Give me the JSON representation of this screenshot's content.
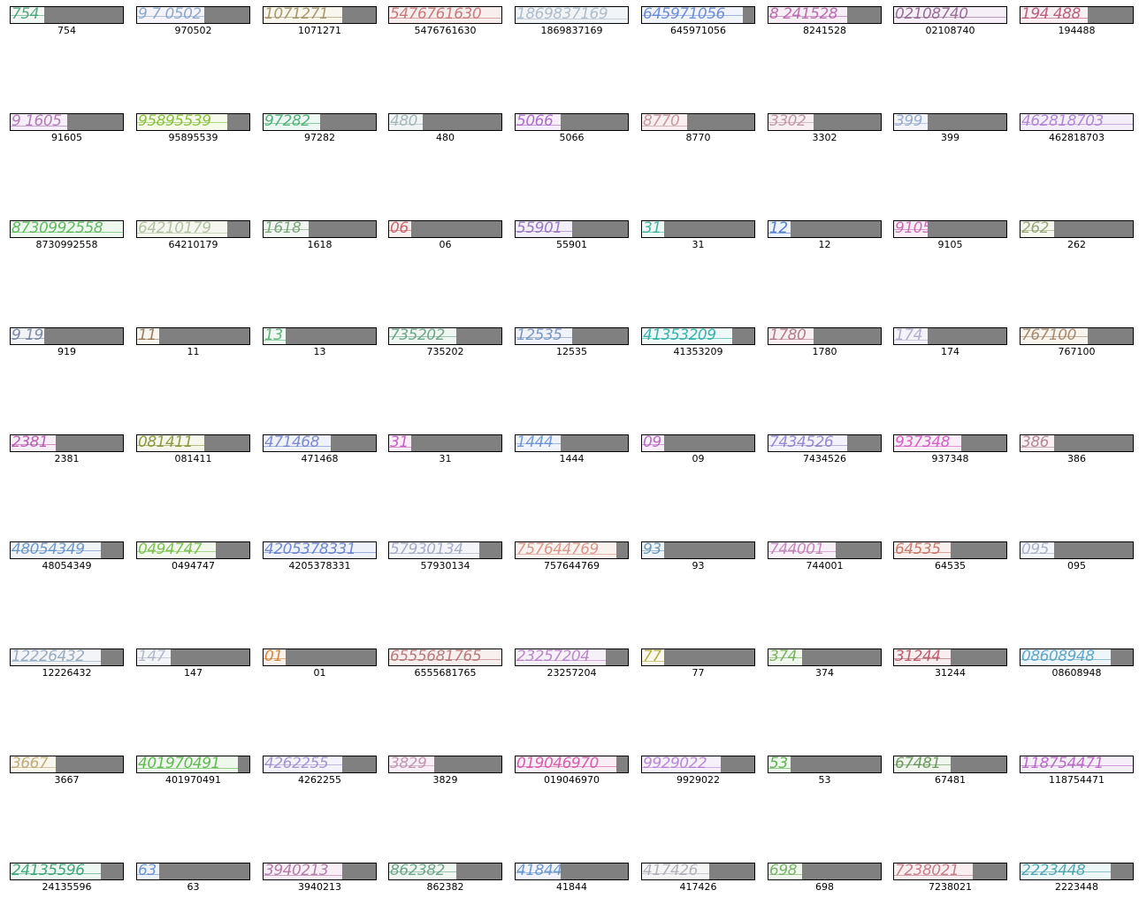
{
  "samples": [
    {
      "label": "754",
      "glyphs": "754",
      "color": "#3e9a70",
      "fill": 0.3,
      "bg": "#f3f8f5"
    },
    {
      "label": "970502",
      "glyphs": "9 7 0502",
      "color": "#7e9cc6",
      "fill": 0.6,
      "bg": "#f4f4fa"
    },
    {
      "label": "1071271",
      "glyphs": "1071271",
      "color": "#9a8a5a",
      "fill": 0.7,
      "bg": "#f9f6ee"
    },
    {
      "label": "5476761630",
      "glyphs": "5476761630",
      "color": "#c06a6a",
      "fill": 1.0,
      "bg": "#f8eeee"
    },
    {
      "label": "1869837169",
      "glyphs": "1869837169",
      "color": "#a4b4c4",
      "fill": 1.0,
      "bg": "#f2f5f8"
    },
    {
      "label": "645971056",
      "glyphs": "645971056",
      "color": "#5a7ed0",
      "fill": 0.9,
      "bg": "#f2f4fb"
    },
    {
      "label": "8241528",
      "glyphs": "8 241528",
      "color": "#b05aa4",
      "fill": 0.7,
      "bg": "#f8eef6"
    },
    {
      "label": "02108740",
      "glyphs": "02108740",
      "color": "#8a5a86",
      "fill": 1.0,
      "bg": "#f6eff8"
    },
    {
      "label": "194488",
      "glyphs": "194 488",
      "color": "#b0486e",
      "fill": 0.6,
      "bg": "#f9eef2"
    },
    {
      "label": "91605",
      "glyphs": "9 1605",
      "color": "#a86ab0",
      "fill": 0.5,
      "bg": "#f6eef8"
    },
    {
      "label": "95895539",
      "glyphs": "95895539",
      "color": "#7ab82a",
      "fill": 0.8,
      "bg": "#f6fae8"
    },
    {
      "label": "97282",
      "glyphs": "97282",
      "color": "#3aa86a",
      "fill": 0.5,
      "bg": "#eef8f2"
    },
    {
      "label": "480",
      "glyphs": "480",
      "color": "#9aaeb0",
      "fill": 0.3,
      "bg": "#f0f4f4"
    },
    {
      "label": "5066",
      "glyphs": "5066",
      "color": "#a45ac8",
      "fill": 0.4,
      "bg": "#f6eef9"
    },
    {
      "label": "8770",
      "glyphs": "8770",
      "color": "#c08a96",
      "fill": 0.4,
      "bg": "#f9eef0"
    },
    {
      "label": "3302",
      "glyphs": "3302",
      "color": "#b88a9a",
      "fill": 0.4,
      "bg": "#f8eff2"
    },
    {
      "label": "399",
      "glyphs": "399",
      "color": "#8aa0c8",
      "fill": 0.3,
      "bg": "#f2f4f9"
    },
    {
      "label": "462818703",
      "glyphs": "462818703",
      "color": "#a878d0",
      "fill": 1.0,
      "bg": "#f4eefa"
    },
    {
      "label": "8730992558",
      "glyphs": "8730992558",
      "color": "#4ab04a",
      "fill": 1.0,
      "bg": "#eef8ee"
    },
    {
      "label": "64210179",
      "glyphs": "64210179",
      "color": "#a8b898",
      "fill": 0.8,
      "bg": "#f5f7ee"
    },
    {
      "label": "1618",
      "glyphs": "1618",
      "color": "#6a9a6a",
      "fill": 0.4,
      "bg": "#f2f6f2"
    },
    {
      "label": "06",
      "glyphs": "06",
      "color": "#c0505a",
      "fill": 0.2,
      "bg": "#f8eeee"
    },
    {
      "label": "55901",
      "glyphs": "55901",
      "color": "#8a68b8",
      "fill": 0.5,
      "bg": "#f3eff9"
    },
    {
      "label": "31",
      "glyphs": "31",
      "color": "#2aa890",
      "fill": 0.2,
      "bg": "#eef8f5"
    },
    {
      "label": "12",
      "glyphs": "12",
      "color": "#3a68c8",
      "fill": 0.2,
      "bg": "#eef2fa"
    },
    {
      "label": "9105",
      "glyphs": "9105",
      "color": "#c05aa8",
      "fill": 0.3,
      "bg": "#f9eef6"
    },
    {
      "label": "262",
      "glyphs": "262",
      "color": "#8a9a6a",
      "fill": 0.3,
      "bg": "#f5f6ee"
    },
    {
      "label": "919",
      "glyphs": "9 19",
      "color": "#6a7a9a",
      "fill": 0.3,
      "bg": "#f2f3f7"
    },
    {
      "label": "11",
      "glyphs": "11",
      "color": "#8a6a4a",
      "fill": 0.2,
      "bg": "#f8f4ee"
    },
    {
      "label": "13",
      "glyphs": "13",
      "color": "#4aa86a",
      "fill": 0.2,
      "bg": "#eef8f2"
    },
    {
      "label": "735202",
      "glyphs": "735202",
      "color": "#5a9a7a",
      "fill": 0.6,
      "bg": "#f0f6f2"
    },
    {
      "label": "12535",
      "glyphs": "12535",
      "color": "#6a8ab8",
      "fill": 0.5,
      "bg": "#f0f3f9"
    },
    {
      "label": "41353209",
      "glyphs": "41353209",
      "color": "#1aa8a0",
      "fill": 0.8,
      "bg": "#eef9f8"
    },
    {
      "label": "1780",
      "glyphs": "1780",
      "color": "#a86a7a",
      "fill": 0.4,
      "bg": "#f8eff2"
    },
    {
      "label": "174",
      "glyphs": "174",
      "color": "#a8a0c8",
      "fill": 0.3,
      "bg": "#f4f3f9"
    },
    {
      "label": "767100",
      "glyphs": "767100",
      "color": "#9a7a5a",
      "fill": 0.6,
      "bg": "#f8f4ee"
    },
    {
      "label": "2381",
      "glyphs": "2381",
      "color": "#b048a8",
      "fill": 0.4,
      "bg": "#f8eef8"
    },
    {
      "label": "081411",
      "glyphs": "081411",
      "color": "#7a8a2a",
      "fill": 0.6,
      "bg": "#f6f7ea"
    },
    {
      "label": "471468",
      "glyphs": "471468",
      "color": "#6a7ac8",
      "fill": 0.6,
      "bg": "#f0f2fa"
    },
    {
      "label": "31",
      "glyphs": "31",
      "color": "#c048b8",
      "fill": 0.2,
      "bg": "#f8eef8"
    },
    {
      "label": "1444",
      "glyphs": "1444",
      "color": "#5a8ad0",
      "fill": 0.4,
      "bg": "#f0f4fa"
    },
    {
      "label": "09",
      "glyphs": "09",
      "color": "#b058b8",
      "fill": 0.2,
      "bg": "#f6eef8"
    },
    {
      "label": "7434526",
      "glyphs": "7434526",
      "color": "#8a78c8",
      "fill": 0.7,
      "bg": "#f4f2fa"
    },
    {
      "label": "937348",
      "glyphs": "937348",
      "color": "#d048c0",
      "fill": 0.6,
      "bg": "#f9eef8"
    },
    {
      "label": "386",
      "glyphs": "386",
      "color": "#a8788a",
      "fill": 0.3,
      "bg": "#f8f0f2"
    },
    {
      "label": "48054349",
      "glyphs": "48054349",
      "color": "#5a8ac0",
      "fill": 0.8,
      "bg": "#f0f4f9"
    },
    {
      "label": "0494747",
      "glyphs": "0494747",
      "color": "#6ab83a",
      "fill": 0.7,
      "bg": "#f2f9ec"
    },
    {
      "label": "4205378331",
      "glyphs": "4205378331",
      "color": "#5a78c8",
      "fill": 1.0,
      "bg": "#f0f2fa"
    },
    {
      "label": "57930134",
      "glyphs": "57930134",
      "color": "#9aa0c0",
      "fill": 0.8,
      "bg": "#f4f5f9"
    },
    {
      "label": "757644769",
      "glyphs": "757644769",
      "color": "#d08a7a",
      "fill": 0.9,
      "bg": "#faf2ef"
    },
    {
      "label": "93",
      "glyphs": "93",
      "color": "#5a8ab0",
      "fill": 0.2,
      "bg": "#eef4f8"
    },
    {
      "label": "744001",
      "glyphs": "744001",
      "color": "#b878b0",
      "fill": 0.6,
      "bg": "#f8f0f7"
    },
    {
      "label": "64535",
      "glyphs": "64535",
      "color": "#c06a5a",
      "fill": 0.5,
      "bg": "#f9f0ee"
    },
    {
      "label": "095",
      "glyphs": "095",
      "color": "#a0a8c0",
      "fill": 0.3,
      "bg": "#f4f5f8"
    },
    {
      "label": "12226432",
      "glyphs": "12226432",
      "color": "#8aa0b8",
      "fill": 0.8,
      "bg": "#f2f4f7"
    },
    {
      "label": "147",
      "glyphs": "147",
      "color": "#a8b0c0",
      "fill": 0.3,
      "bg": "#f3f4f7"
    },
    {
      "label": "01",
      "glyphs": "01",
      "color": "#c8782a",
      "fill": 0.2,
      "bg": "#faf2ea"
    },
    {
      "label": "6555681765",
      "glyphs": "6555681765",
      "color": "#b06a6a",
      "fill": 1.0,
      "bg": "#f8efef"
    },
    {
      "label": "23257204",
      "glyphs": "23257204",
      "color": "#b078c0",
      "fill": 0.8,
      "bg": "#f6f0f9"
    },
    {
      "label": "77",
      "glyphs": "77",
      "color": "#a8a02a",
      "fill": 0.2,
      "bg": "#f9f8ea"
    },
    {
      "label": "374",
      "glyphs": "374",
      "color": "#6aa84a",
      "fill": 0.3,
      "bg": "#f0f8ee"
    },
    {
      "label": "31244",
      "glyphs": "31244",
      "color": "#b0485a",
      "fill": 0.5,
      "bg": "#f8eef0"
    },
    {
      "label": "08608948",
      "glyphs": "08608948",
      "color": "#4a9ac0",
      "fill": 0.8,
      "bg": "#eef6f9"
    },
    {
      "label": "3667",
      "glyphs": "3667",
      "color": "#b8a06a",
      "fill": 0.4,
      "bg": "#f9f6ee"
    },
    {
      "label": "401970491",
      "glyphs": "401970491",
      "color": "#4ab03a",
      "fill": 0.9,
      "bg": "#eef8ec"
    },
    {
      "label": "4262255",
      "glyphs": "4262255",
      "color": "#9a88c8",
      "fill": 0.7,
      "bg": "#f4f2fa"
    },
    {
      "label": "3829",
      "glyphs": "3829",
      "color": "#b88aa8",
      "fill": 0.4,
      "bg": "#f8f0f6"
    },
    {
      "label": "019046970",
      "glyphs": "019046970",
      "color": "#d04aa0",
      "fill": 0.9,
      "bg": "#f9eef6"
    },
    {
      "label": "9929022",
      "glyphs": "9929022",
      "color": "#b078d0",
      "fill": 0.7,
      "bg": "#f6f0fa"
    },
    {
      "label": "53",
      "glyphs": "53",
      "color": "#4aa83a",
      "fill": 0.2,
      "bg": "#eef8ec"
    },
    {
      "label": "67481",
      "glyphs": "67481",
      "color": "#5a8a4a",
      "fill": 0.5,
      "bg": "#f0f6ee"
    },
    {
      "label": "118754471",
      "glyphs": "118754471",
      "color": "#b058c0",
      "fill": 1.0,
      "bg": "#f6eef9"
    },
    {
      "label": "24135596",
      "glyphs": "24135596",
      "color": "#2a9a6a",
      "fill": 0.8,
      "bg": "#eef8f3"
    },
    {
      "label": "63",
      "glyphs": "63",
      "color": "#5a88c8",
      "fill": 0.2,
      "bg": "#eef3fa"
    },
    {
      "label": "3940213",
      "glyphs": "3940213",
      "color": "#a86a9a",
      "fill": 0.7,
      "bg": "#f8eff6"
    },
    {
      "label": "862382",
      "glyphs": "862382",
      "color": "#5a9a7a",
      "fill": 0.6,
      "bg": "#f0f7f3"
    },
    {
      "label": "41844",
      "glyphs": "41844",
      "color": "#5a8ac8",
      "fill": 0.4,
      "bg": "#f0f4fa"
    },
    {
      "label": "417426",
      "glyphs": "417426",
      "color": "#a8a8b0",
      "fill": 0.6,
      "bg": "#f5f5f6"
    },
    {
      "label": "698",
      "glyphs": "698",
      "color": "#6aa85a",
      "fill": 0.3,
      "bg": "#f0f8ee"
    },
    {
      "label": "7238021",
      "glyphs": "7238021",
      "color": "#c06a7a",
      "fill": 0.7,
      "bg": "#f9eff1"
    },
    {
      "label": "2223448",
      "glyphs": "2223448",
      "color": "#3a9aa8",
      "fill": 0.8,
      "bg": "#eef7f8"
    }
  ]
}
